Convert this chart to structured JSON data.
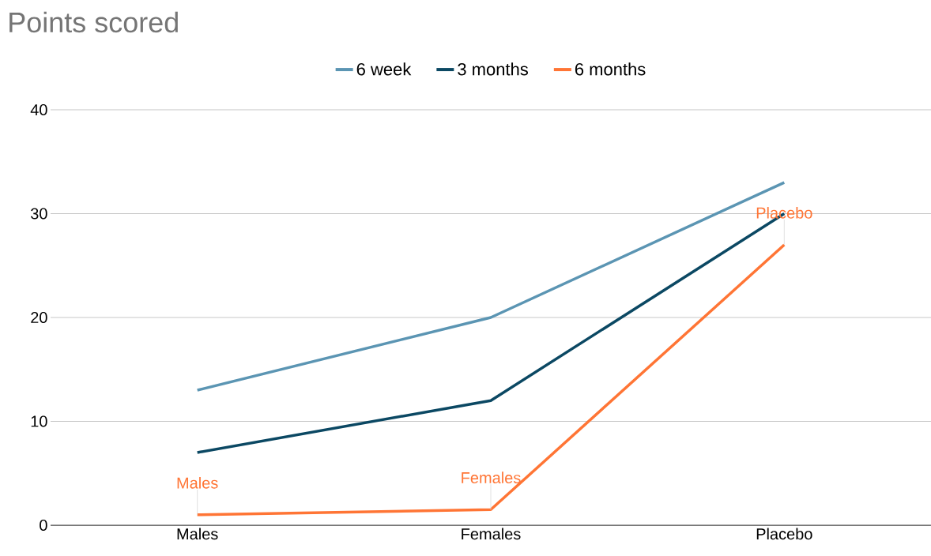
{
  "chart_data": {
    "type": "line",
    "title": "Points scored",
    "categories": [
      "Males",
      "Females",
      "Placebo"
    ],
    "series": [
      {
        "name": "6 week",
        "color": "#5b95b3",
        "values": [
          13,
          20,
          33
        ]
      },
      {
        "name": "3 months",
        "color": "#0b4863",
        "values": [
          7,
          12,
          30
        ]
      },
      {
        "name": "6 months",
        "color": "#ff7535",
        "values": [
          1,
          1.5,
          27
        ]
      }
    ],
    "annotations": [
      {
        "text": "Males",
        "x": "Males",
        "y": 1
      },
      {
        "text": "Females",
        "x": "Females",
        "y": 1.5
      },
      {
        "text": "Placebo",
        "x": "Placebo",
        "y": 27
      }
    ],
    "ylim": [
      0,
      40
    ],
    "yticks": [
      0,
      10,
      20,
      30,
      40
    ],
    "grid": "y",
    "legend": "top",
    "marker": "none",
    "line_style": "solid"
  }
}
